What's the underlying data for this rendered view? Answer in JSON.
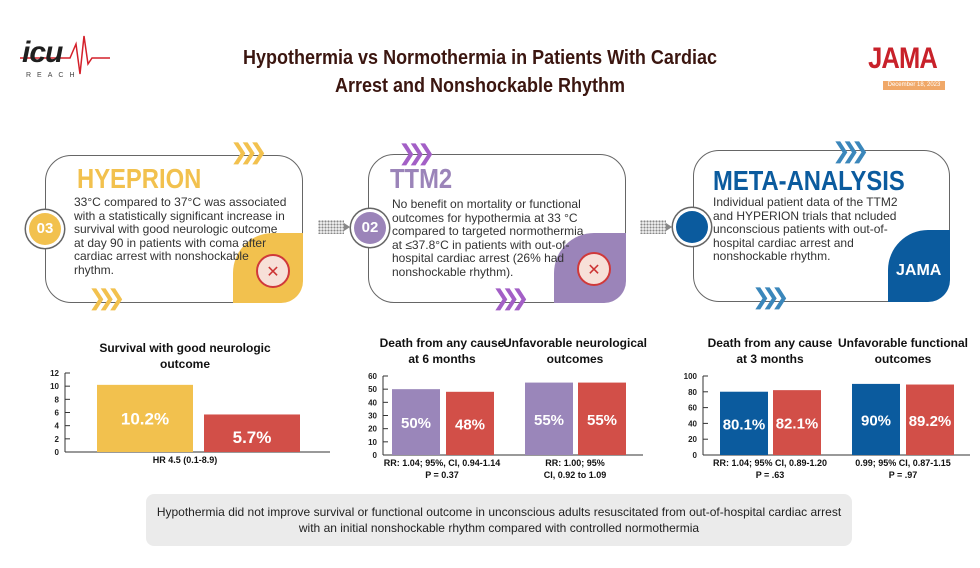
{
  "header": {
    "logo_left": "ICU REACH",
    "logo_left_main": "icu",
    "logo_left_sub": "REACH",
    "title": "Hypothermia vs Normothermia in Patients With Cardiac Arrest and Nonshockable Rhythm",
    "logo_right": "JAMA",
    "date": "December 18, 2023"
  },
  "cards": [
    {
      "number": "03",
      "title": "HYEPRION",
      "body": "33°C compared to 37°C was associated with a statistically significant increase in survival with good neurologic outcome at day 90 in patients with coma after cardiac arrest with nonshockable rhythm.",
      "color": "#f2c14e"
    },
    {
      "number": "02",
      "title": "TTM2",
      "body": "No benefit on mortality or functional outcomes for hypothermia at 33 °C compared to targeted normothermia at ≤37.8°C in patients with out-of-hospital cardiac arrest (26% had nonshockable rhythm).",
      "color": "#9b84b9"
    },
    {
      "number": "",
      "title": "META-ANALYSIS",
      "body": "Individual patient data of the TTM2 and HYPERION trials that ncluded unconscious patients with out-of-hospital cardiac arrest and nonshockable rhythm.",
      "badge_label": "JAMA",
      "color": "#0b5b9e"
    }
  ],
  "chart_data": [
    {
      "type": "bar",
      "title": "Survival with good neurologic outcome",
      "ylim": [
        0,
        12
      ],
      "yticks": [
        0,
        2,
        4,
        6,
        8,
        10,
        12
      ],
      "categories": [
        "Survival with good neurologic outcome"
      ],
      "series": [
        {
          "values": [
            10.2
          ],
          "labels": [
            "10.2%"
          ],
          "color": "#f2c14e"
        },
        {
          "values": [
            5.7
          ],
          "labels": [
            "5.7%"
          ],
          "color": "#d24f48"
        }
      ],
      "annotations": [
        "HR 4.5 (0.1-8.9)"
      ]
    },
    {
      "type": "bar",
      "ylim": [
        0,
        60
      ],
      "yticks": [
        0,
        10,
        20,
        30,
        40,
        50,
        60
      ],
      "categories": [
        "Death from any cause at 6 months",
        "Unfavorable neurological outcomes"
      ],
      "series": [
        {
          "values": [
            50,
            55
          ],
          "labels": [
            "50%",
            "55%"
          ],
          "color": "#9a86ba"
        },
        {
          "values": [
            48,
            55
          ],
          "labels": [
            "48%",
            "55%"
          ],
          "color": "#d24f48"
        }
      ],
      "annotations": [
        "RR: 1.04; 95%, CI, 0.94-1.14\nP = 0.37",
        "RR: 1.00; 95%\nCI, 0.92 to 1.09"
      ]
    },
    {
      "type": "bar",
      "ylim": [
        0,
        100
      ],
      "yticks": [
        0,
        20,
        40,
        60,
        80,
        100
      ],
      "categories": [
        "Death from any cause at 3 months",
        "Unfavorable functional outcomes"
      ],
      "series": [
        {
          "values": [
            80.1,
            90
          ],
          "labels": [
            "80.1%",
            "90%"
          ],
          "color": "#0b5b9e"
        },
        {
          "values": [
            82.1,
            89.2
          ],
          "labels": [
            "82.1%",
            "89.2%"
          ],
          "color": "#d24f48"
        }
      ],
      "annotations": [
        "RR: 1.04; 95% CI, 0.89-1.20\nP = .63",
        "0.99; 95% CI, 0.87-1.15\nP = .97"
      ]
    }
  ],
  "footer": "Hypothermia did not improve survival or functional outcome in unconscious adults resuscitated from out-of-hospital cardiac arrest with an initial nonshockable rhythm compared  with controlled normothermia"
}
